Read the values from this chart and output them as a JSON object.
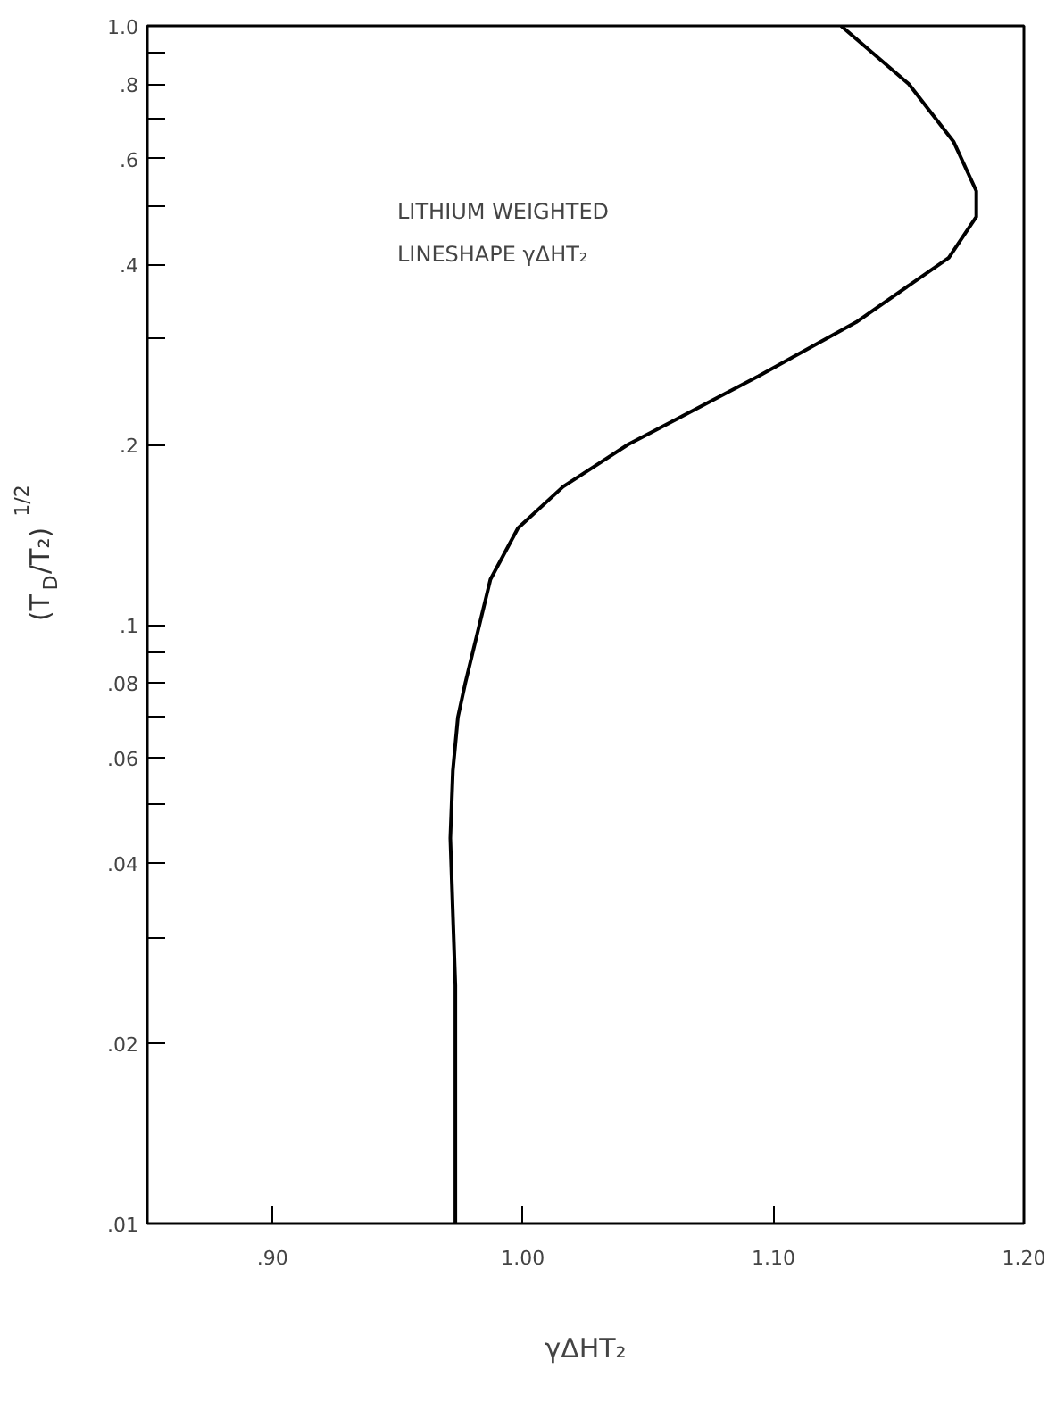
{
  "chart_data": {
    "type": "line",
    "xlabel": "γΔHT₂",
    "ylabel": "(T$_{D}$/T₂)$^{1/2}$",
    "annotations": [
      "LITHIUM WEIGHTED",
      "LINESHAPE γΔHT₂"
    ],
    "log": "y",
    "grid": false,
    "marker": "none",
    "line_style": "solid",
    "xlim": [
      0.85,
      1.2
    ],
    "xticks": [
      {
        "value": 0.9,
        "label": ".90"
      },
      {
        "value": 1.0,
        "label": "1.00"
      },
      {
        "value": 1.1,
        "label": "1.10"
      },
      {
        "value": 1.2,
        "label": "1.20"
      }
    ],
    "ylim": [
      0.01,
      1.0
    ],
    "yticks": [
      {
        "value": 0.01,
        "label": ".01"
      },
      {
        "value": 0.02,
        "label": ".02"
      },
      {
        "value": 0.03,
        "label": null
      },
      {
        "value": 0.04,
        "label": ".04"
      },
      {
        "value": 0.05,
        "label": null
      },
      {
        "value": 0.06,
        "label": ".06"
      },
      {
        "value": 0.07,
        "label": null
      },
      {
        "value": 0.08,
        "label": ".08"
      },
      {
        "value": 0.09,
        "label": null
      },
      {
        "value": 0.1,
        "label": ".1"
      },
      {
        "value": 0.2,
        "label": ".2"
      },
      {
        "value": 0.3,
        "label": null
      },
      {
        "value": 0.4,
        "label": ".4"
      },
      {
        "value": 0.5,
        "label": null
      },
      {
        "value": 0.6,
        "label": ".6"
      },
      {
        "value": 0.7,
        "label": null
      },
      {
        "value": 0.8,
        "label": ".8"
      },
      {
        "value": 0.9,
        "label": null
      },
      {
        "value": 1.0,
        "label": "1.0"
      }
    ],
    "series": [
      {
        "color": "#000000",
        "x": [
          1.127,
          1.154,
          1.172,
          1.181,
          1.181,
          1.17,
          1.133,
          1.094,
          1.042,
          1.016,
          0.998,
          0.987,
          0.977,
          0.974,
          0.972,
          0.971,
          0.972,
          0.973,
          0.973,
          0.973
        ],
        "values": [
          1.0,
          0.8,
          0.64,
          0.53,
          0.48,
          0.41,
          0.32,
          0.26,
          0.2,
          0.17,
          0.145,
          0.119,
          0.08,
          0.07,
          0.057,
          0.044,
          0.033,
          0.025,
          0.0163,
          0.01
        ]
      }
    ]
  }
}
